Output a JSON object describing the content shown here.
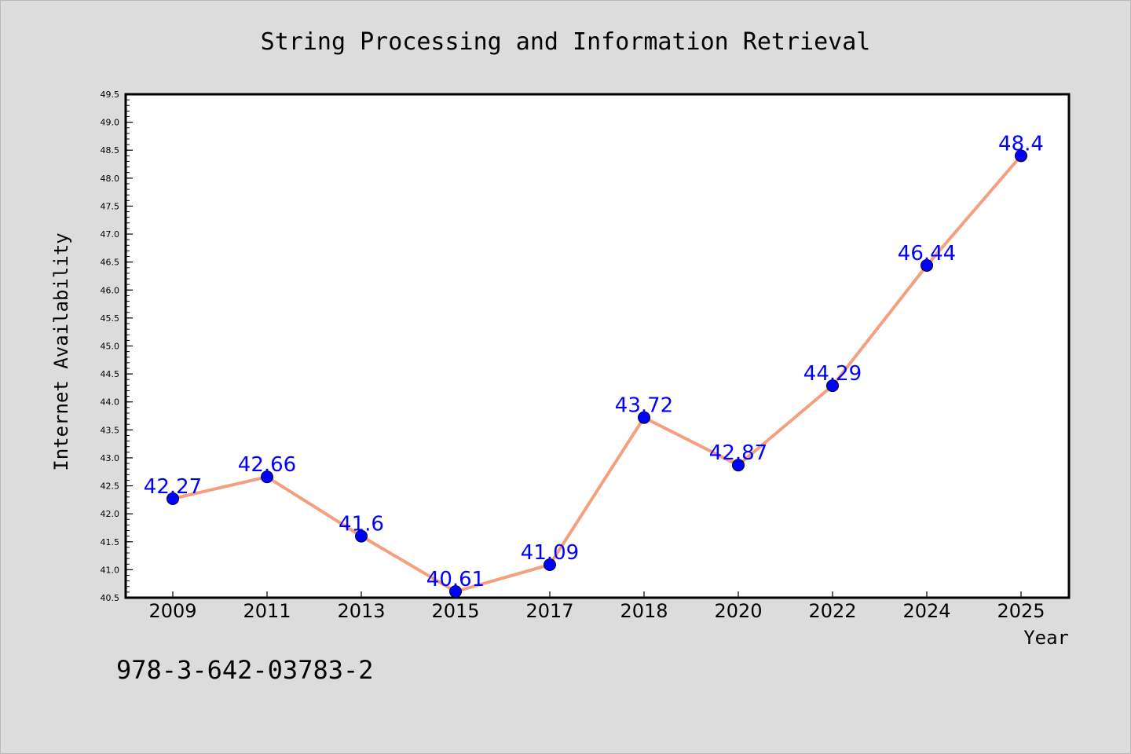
{
  "chart_data": {
    "type": "line",
    "title": "String Processing and Information Retrieval",
    "xlabel": "Year",
    "ylabel": "Internet Availability",
    "categories": [
      "2009",
      "2011",
      "2013",
      "2015",
      "2017",
      "2018",
      "2020",
      "2022",
      "2024",
      "2025"
    ],
    "series": [
      {
        "values": [
          42.27,
          42.66,
          41.6,
          40.61,
          41.09,
          43.72,
          42.87,
          44.29,
          46.44,
          48.4
        ],
        "data_labels": [
          "42.27",
          "42.66",
          "41.6",
          "40.61",
          "41.09",
          "43.72",
          "42.87",
          "44.29",
          "46.44",
          "48.4"
        ],
        "line_color": "#f4a07e",
        "marker_color": "#0000ff"
      }
    ],
    "ylim": [
      40.5,
      49.5
    ],
    "yticks": [
      "40.5",
      "41.0",
      "41.5",
      "42.0",
      "42.5",
      "43.0",
      "43.5",
      "44.0",
      "44.5",
      "45.0",
      "45.5",
      "46.0",
      "46.5",
      "47.0",
      "47.5",
      "48.0",
      "48.5",
      "49.0",
      "49.5"
    ],
    "grid": false,
    "legend": "none",
    "footer_text": "978-3-642-03783-2"
  }
}
